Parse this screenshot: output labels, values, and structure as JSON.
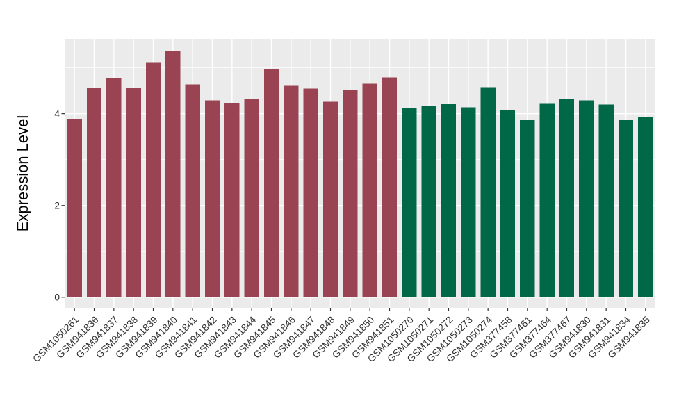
{
  "chart_data": {
    "type": "bar",
    "title": "",
    "xlabel": "",
    "ylabel": "Expression Level",
    "ylim": [
      -0.23,
      5.63
    ],
    "yticks": [
      0,
      2,
      4
    ],
    "yticks_minor": [
      1,
      3,
      5
    ],
    "grid": "on",
    "legend": "none",
    "bar_width_fraction": 0.75,
    "group_colors": [
      "#9A4453",
      "#006747"
    ],
    "bars": [
      {
        "label": "GSM1050261",
        "value": 3.89,
        "group": 0
      },
      {
        "label": "GSM941836",
        "value": 4.57,
        "group": 0
      },
      {
        "label": "GSM941837",
        "value": 4.78,
        "group": 0
      },
      {
        "label": "GSM941838",
        "value": 4.57,
        "group": 0
      },
      {
        "label": "GSM941839",
        "value": 5.12,
        "group": 0
      },
      {
        "label": "GSM941840",
        "value": 5.37,
        "group": 0
      },
      {
        "label": "GSM941841",
        "value": 4.64,
        "group": 0
      },
      {
        "label": "GSM941842",
        "value": 4.29,
        "group": 0
      },
      {
        "label": "GSM941843",
        "value": 4.24,
        "group": 0
      },
      {
        "label": "GSM941844",
        "value": 4.33,
        "group": 0
      },
      {
        "label": "GSM941845",
        "value": 4.97,
        "group": 0
      },
      {
        "label": "GSM941846",
        "value": 4.61,
        "group": 0
      },
      {
        "label": "GSM941847",
        "value": 4.55,
        "group": 0
      },
      {
        "label": "GSM941848",
        "value": 4.26,
        "group": 0
      },
      {
        "label": "GSM941849",
        "value": 4.51,
        "group": 0
      },
      {
        "label": "GSM941850",
        "value": 4.65,
        "group": 0
      },
      {
        "label": "GSM941851",
        "value": 4.79,
        "group": 0
      },
      {
        "label": "GSM1050270",
        "value": 4.12,
        "group": 1
      },
      {
        "label": "GSM1050271",
        "value": 4.16,
        "group": 1
      },
      {
        "label": "GSM1050272",
        "value": 4.21,
        "group": 1
      },
      {
        "label": "GSM1050273",
        "value": 4.14,
        "group": 1
      },
      {
        "label": "GSM1050274",
        "value": 4.58,
        "group": 1
      },
      {
        "label": "GSM377458",
        "value": 4.08,
        "group": 1
      },
      {
        "label": "GSM377461",
        "value": 3.86,
        "group": 1
      },
      {
        "label": "GSM377464",
        "value": 4.23,
        "group": 1
      },
      {
        "label": "GSM377467",
        "value": 4.33,
        "group": 1
      },
      {
        "label": "GSM941830",
        "value": 4.29,
        "group": 1
      },
      {
        "label": "GSM941831",
        "value": 4.2,
        "group": 1
      },
      {
        "label": "GSM941834",
        "value": 3.87,
        "group": 1
      },
      {
        "label": "GSM941835",
        "value": 3.92,
        "group": 1
      }
    ]
  },
  "style": {
    "page_bg": "#FFFFFF",
    "panel_bg": "#EBEBEB",
    "grid_color": "#FFFFFF",
    "tick_color": "#333333",
    "tick_label_color": "#333333",
    "axis_title_color": "#000000"
  }
}
